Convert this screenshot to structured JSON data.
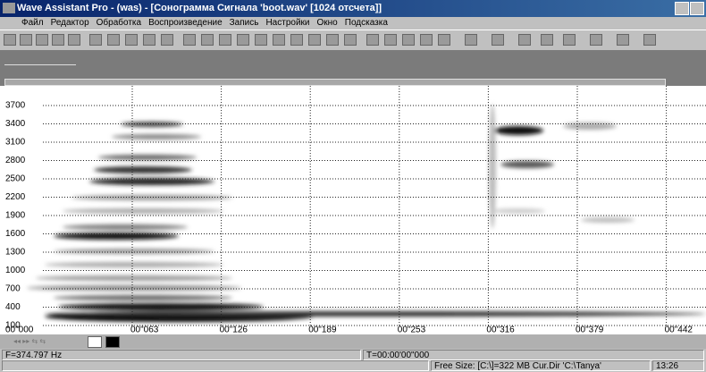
{
  "window": {
    "title": "Wave Assistant Pro - (was) - [Сонограмма Сигнала 'boot.wav' [1024 отсчета]]"
  },
  "menu": [
    "Файл",
    "Редактор",
    "Обработка",
    "Воспроизведение",
    "Запись",
    "Настройки",
    "Окно",
    "Подсказка"
  ],
  "spectrogram": {
    "y_labels": [
      "3700",
      "3400",
      "3100",
      "2800",
      "2500",
      "2200",
      "1900",
      "1600",
      "1300",
      "1000",
      "700",
      "400",
      "100"
    ],
    "x_labels": [
      "00\"000",
      "00\"063",
      "00\"126",
      "00\"189",
      "00\"253",
      "00\"316",
      "00\"379",
      "00\"442"
    ]
  },
  "status": {
    "frequency": "F=374.797 Hz",
    "time": "T=00:00'00\"000",
    "free_size": "Free Size: [C:\\]=322 MB Cur.Dir 'C:\\Tanya'",
    "clock": "13:26"
  }
}
